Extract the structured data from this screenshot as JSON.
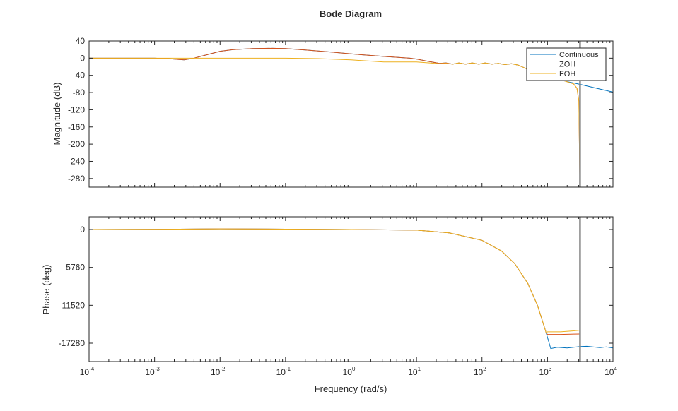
{
  "chart_data": [
    {
      "type": "line",
      "title": "Bode Diagram",
      "ylabel": "Magnitude (dB)",
      "xscale": "log",
      "xlim": [
        0.0001,
        10000
      ],
      "ylim": [
        -300,
        40
      ],
      "yticks": [
        40,
        0,
        -40,
        -80,
        -120,
        -160,
        -200,
        -240,
        -280
      ],
      "yticklabels": [
        "40",
        "0",
        "-40",
        "-80",
        "-120",
        "-160",
        "-200",
        "-240",
        "-280"
      ],
      "nyquist_marker_rad_s": 3141.6,
      "legend": {
        "placement": "top-right",
        "entries": [
          "Continuous",
          "ZOH",
          "FOH"
        ]
      },
      "series": [
        {
          "name": "Continuous",
          "color": "#0072BD",
          "x_log10": [
            -4,
            -3,
            -2.8,
            -2.55,
            -2.4,
            -2.2,
            -2,
            -1.8,
            -1.5,
            -1.2,
            -1,
            -0.7,
            -0.3,
            0,
            0.5,
            0.9,
            1.0,
            1.2,
            1.35,
            1.45,
            1.55,
            1.65,
            1.75,
            1.85,
            1.95,
            2.05,
            2.15,
            2.25,
            2.35,
            2.45,
            2.55,
            2.7,
            3.0,
            3.28,
            3.5,
            3.75,
            4
          ],
          "y": [
            0,
            0,
            -1,
            -4,
            0,
            8,
            16,
            20,
            22.5,
            23,
            22.5,
            19,
            14,
            10,
            4,
            0,
            -2,
            -8,
            -12,
            -11,
            -14,
            -11,
            -14,
            -11,
            -14,
            -11,
            -14,
            -12,
            -15,
            -13,
            -16,
            -26,
            -40,
            -54,
            -61,
            -70,
            -79
          ]
        },
        {
          "name": "ZOH",
          "color": "#D95319",
          "x_log10": [
            -4,
            -3,
            -2.8,
            -2.55,
            -2.4,
            -2.2,
            -2,
            -1.8,
            -1.5,
            -1.2,
            -1,
            -0.7,
            -0.3,
            0,
            0.5,
            0.9,
            1.0,
            1.2,
            1.35,
            1.45,
            1.55,
            1.65,
            1.75,
            1.85,
            1.95,
            2.05,
            2.15,
            2.25,
            2.35,
            2.45,
            2.55,
            2.7,
            3.0,
            3.28,
            3.4,
            3.45,
            3.48,
            3.495
          ],
          "y": [
            0,
            0,
            -1,
            -4,
            0,
            8,
            16,
            20,
            22.5,
            23,
            22.5,
            19,
            14,
            10,
            4,
            0,
            -2,
            -8,
            -12,
            -11,
            -14,
            -11,
            -14,
            -11,
            -14,
            -11,
            -14,
            -12,
            -15,
            -13,
            -16,
            -26,
            -40,
            -54,
            -60,
            -70,
            -100,
            -300
          ]
        },
        {
          "name": "FOH",
          "color": "#EDB120",
          "x_log10": [
            -4,
            -2,
            -1,
            -0.5,
            0,
            0.5,
            1.0,
            1.2,
            1.35,
            1.45,
            1.55,
            1.65,
            1.75,
            1.85,
            1.95,
            2.05,
            2.15,
            2.25,
            2.35,
            2.45,
            2.55,
            2.7,
            3.0,
            3.28,
            3.4,
            3.45,
            3.48,
            3.495
          ],
          "y": [
            0,
            0,
            0,
            -1,
            -4,
            -9,
            -9,
            -11,
            -13,
            -12,
            -14,
            -11,
            -14,
            -11,
            -14,
            -11,
            -14,
            -12,
            -15,
            -13,
            -16,
            -26,
            -40,
            -54,
            -60,
            -70,
            -100,
            -300
          ]
        }
      ]
    },
    {
      "type": "line",
      "ylabel": "Phase (deg)",
      "xlabel": "Frequency (rad/s)",
      "xscale": "log",
      "xlim": [
        0.0001,
        10000
      ],
      "ylim": [
        -20070,
        1930
      ],
      "xticks": [
        -4,
        -3,
        -2,
        -1,
        0,
        1,
        2,
        3,
        4
      ],
      "yticks": [
        0,
        -5760,
        -11520,
        -17280
      ],
      "yticklabels": [
        "0",
        "-5760",
        "-11520",
        "-17280"
      ],
      "nyquist_marker_rad_s": 3141.6,
      "series": [
        {
          "name": "Continuous",
          "color": "#0072BD",
          "x_log10": [
            -4,
            -3,
            -2,
            -1,
            0,
            1,
            1.5,
            2,
            2.3,
            2.5,
            2.7,
            2.85,
            2.98,
            3.05,
            3.15,
            3.3,
            3.5,
            3.6,
            3.8,
            3.9,
            4
          ],
          "y": [
            0,
            20,
            100,
            50,
            0,
            -100,
            -520,
            -1640,
            -3280,
            -5200,
            -8200,
            -11600,
            -15700,
            -18100,
            -17900,
            -18000,
            -17800,
            -17750,
            -17950,
            -17850,
            -18000
          ]
        },
        {
          "name": "ZOH",
          "color": "#D95319",
          "x_log10": [
            -4,
            -3,
            -2,
            -1,
            0,
            1,
            1.5,
            2,
            2.3,
            2.5,
            2.7,
            2.85,
            2.98,
            3.0,
            3.2,
            3.4,
            3.49
          ],
          "y": [
            0,
            20,
            100,
            50,
            0,
            -100,
            -520,
            -1640,
            -3280,
            -5200,
            -8200,
            -11600,
            -15700,
            -15950,
            -15950,
            -15900,
            -15880
          ]
        },
        {
          "name": "FOH",
          "color": "#EDB120",
          "x_log10": [
            -4,
            -3,
            -2,
            -1,
            0,
            1,
            1.5,
            2,
            2.3,
            2.5,
            2.7,
            2.85,
            2.98,
            3.0,
            3.2,
            3.4,
            3.49
          ],
          "y": [
            0,
            20,
            100,
            50,
            0,
            -100,
            -520,
            -1640,
            -3280,
            -5200,
            -8200,
            -11600,
            -15700,
            -15550,
            -15550,
            -15400,
            -15300
          ]
        }
      ]
    }
  ]
}
